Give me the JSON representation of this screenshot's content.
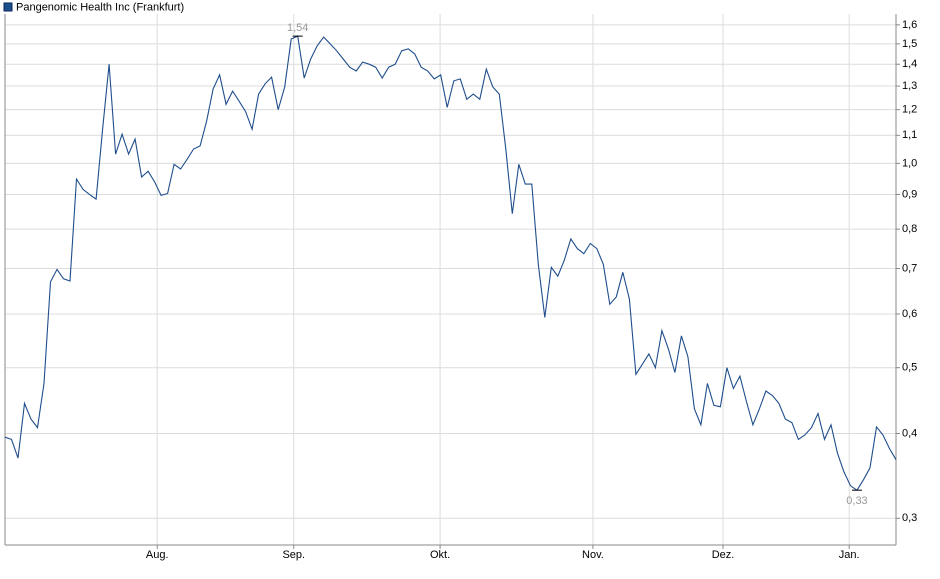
{
  "chart_data": {
    "type": "line",
    "legend": "Pangenomic Health Inc (Frankfurt)",
    "log_scale": true,
    "grid": true,
    "series": [
      {
        "name": "Pangenomic Health Inc (Frankfurt)",
        "color": "#1f4e8c",
        "values": [
          0.395,
          0.392,
          0.368,
          0.443,
          0.42,
          0.408,
          0.474,
          0.669,
          0.698,
          0.676,
          0.671,
          0.948,
          0.916,
          0.9,
          0.886,
          1.123,
          1.4,
          1.032,
          1.104,
          1.032,
          1.086,
          0.955,
          0.974,
          0.939,
          0.897,
          0.903,
          0.997,
          0.981,
          1.014,
          1.05,
          1.061,
          1.154,
          1.287,
          1.35,
          1.222,
          1.278,
          1.235,
          1.192,
          1.123,
          1.265,
          1.31,
          1.34,
          1.2,
          1.296,
          1.525,
          1.54,
          1.336,
          1.425,
          1.49,
          1.535,
          1.5,
          1.465,
          1.425,
          1.386,
          1.368,
          1.41,
          1.4,
          1.386,
          1.336,
          1.386,
          1.4,
          1.465,
          1.475,
          1.45,
          1.386,
          1.368,
          1.332,
          1.35,
          1.209,
          1.323,
          1.332,
          1.243,
          1.265,
          1.243,
          1.377,
          1.296,
          1.265,
          1.05,
          0.843,
          0.997,
          0.932,
          0.932,
          0.71,
          0.593,
          0.703,
          0.682,
          0.72,
          0.774,
          0.749,
          0.736,
          0.762,
          0.749,
          0.71,
          0.62,
          0.636,
          0.691,
          0.631,
          0.489,
          0.506,
          0.524,
          0.5,
          0.567,
          0.533,
          0.492,
          0.557,
          0.519,
          0.435,
          0.412,
          0.474,
          0.44,
          0.438,
          0.5,
          0.466,
          0.486,
          0.446,
          0.412,
          0.435,
          0.462,
          0.455,
          0.443,
          0.42,
          0.415,
          0.392,
          0.398,
          0.408,
          0.428,
          0.392,
          0.412,
          0.374,
          0.351,
          0.335,
          0.33,
          0.342,
          0.356,
          0.409,
          0.398,
          0.38,
          0.366
        ]
      }
    ],
    "annotations": [
      {
        "value": 1.54,
        "label": "1,54"
      },
      {
        "value": 0.33,
        "label": "0,33"
      }
    ],
    "xlim": [
      0,
      137
    ],
    "xticks": [
      {
        "value": 23.4,
        "label": "Aug."
      },
      {
        "value": 44.4,
        "label": "Sep."
      },
      {
        "value": 66.9,
        "label": "Okt."
      },
      {
        "value": 90.4,
        "label": "Nov."
      },
      {
        "value": 110.4,
        "label": "Dez."
      },
      {
        "value": 129.8,
        "label": "Jan."
      }
    ],
    "ylim": [
      0.274,
      1.66
    ],
    "yticks": [
      {
        "value": 0.3,
        "label": "0,3"
      },
      {
        "value": 0.4,
        "label": "0,4"
      },
      {
        "value": 0.5,
        "label": "0,5"
      },
      {
        "value": 0.6,
        "label": "0,6"
      },
      {
        "value": 0.7,
        "label": "0,7"
      },
      {
        "value": 0.8,
        "label": "0,8"
      },
      {
        "value": 0.9,
        "label": "0,9"
      },
      {
        "value": 1.0,
        "label": "1,0"
      },
      {
        "value": 1.1,
        "label": "1,1"
      },
      {
        "value": 1.2,
        "label": "1,2"
      },
      {
        "value": 1.3,
        "label": "1,3"
      },
      {
        "value": 1.4,
        "label": "1,4"
      },
      {
        "value": 1.5,
        "label": "1,5"
      },
      {
        "value": 1.6,
        "label": "1,6"
      }
    ]
  }
}
